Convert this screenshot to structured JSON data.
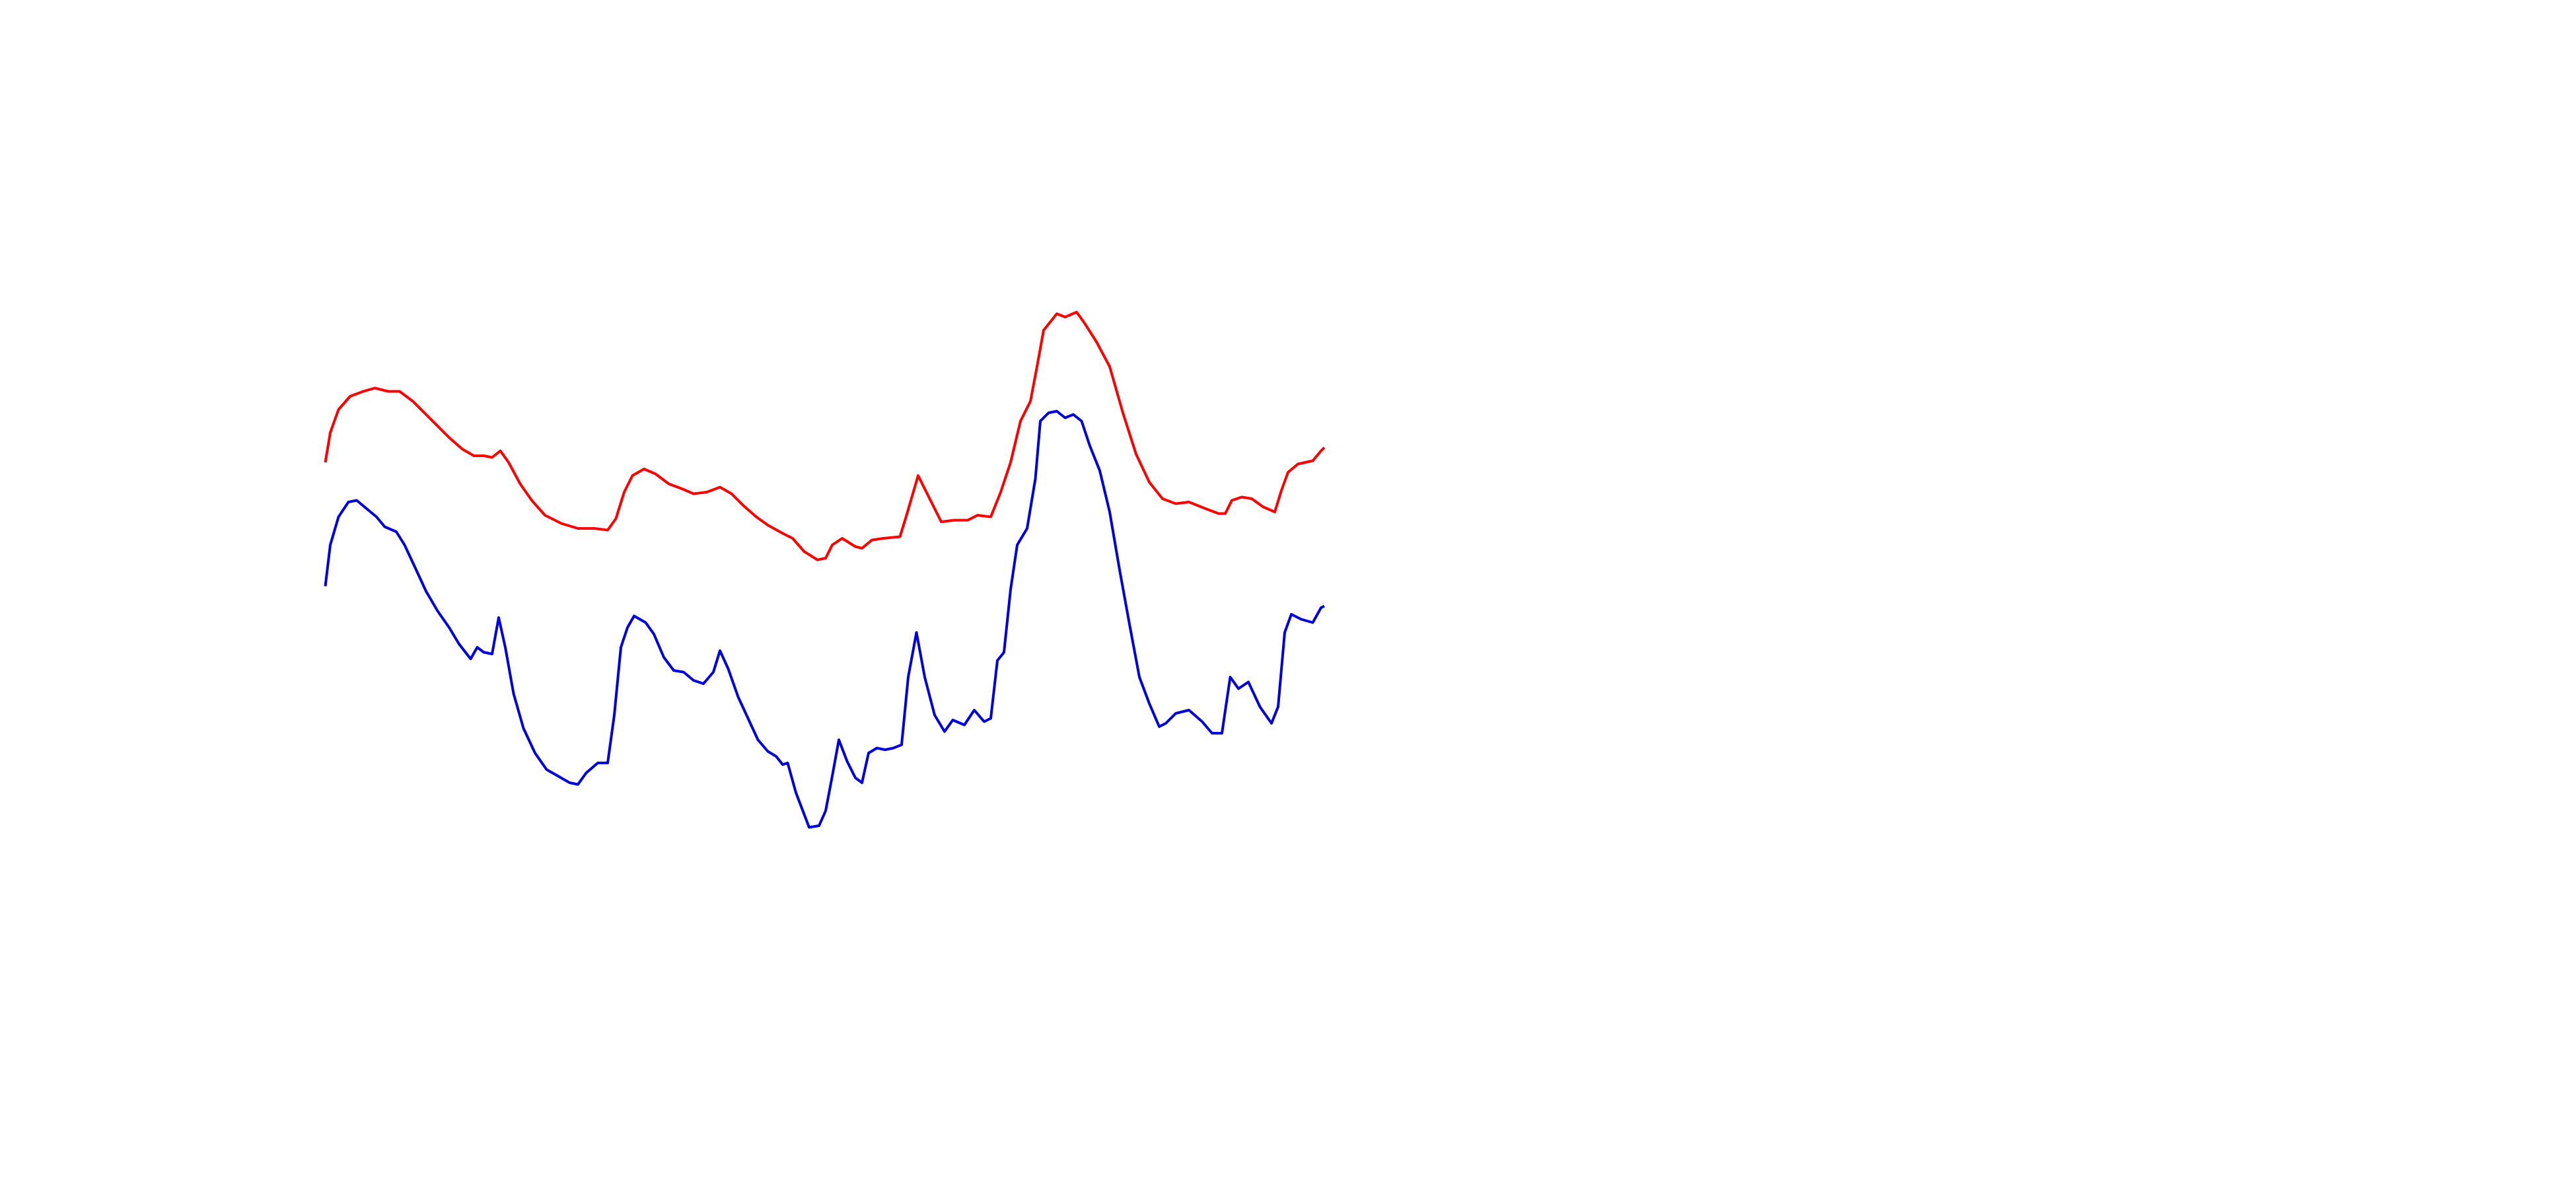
{
  "chart_data": {
    "type": "line",
    "xlim": [
      0,
      1560
    ],
    "ylim": [
      720,
      0
    ],
    "series": [
      {
        "color": "#ff0000",
        "x": [
          197,
          200,
          205,
          212,
          220,
          227,
          235,
          242,
          250,
          258,
          265,
          272,
          280,
          287,
          293,
          298,
          303,
          308,
          315,
          322,
          330,
          340,
          350,
          360,
          368,
          373,
          378,
          383,
          390,
          397,
          405,
          413,
          420,
          428,
          436,
          443,
          450,
          458,
          465,
          474,
          480,
          487,
          495,
          500,
          504,
          510,
          518,
          522,
          528,
          535,
          545,
          549,
          556,
          563,
          570,
          578,
          586,
          592,
          600,
          606,
          612,
          618,
          624,
          628,
          632,
          640,
          645,
          652,
          657,
          664,
          672,
          680,
          688,
          696,
          704,
          712,
          720,
          730,
          738,
          742,
          746,
          752,
          758,
          765,
          772,
          776,
          780,
          786,
          795,
          800,
          802
        ],
        "values": [
          280,
          262,
          248,
          240,
          237,
          235,
          237,
          237,
          243,
          251,
          258,
          265,
          272,
          276,
          276,
          277,
          273,
          280,
          293,
          303,
          312,
          317,
          320,
          320,
          321,
          314,
          298,
          288,
          284,
          287,
          293,
          296,
          299,
          298,
          295,
          299,
          306,
          313,
          318,
          323,
          326,
          334,
          339,
          338,
          330,
          326,
          331,
          332,
          327,
          326,
          325,
          312,
          288,
          302,
          316,
          315,
          315,
          312,
          313,
          298,
          280,
          255,
          243,
          222,
          200,
          190,
          192,
          189,
          196,
          207,
          222,
          250,
          275,
          292,
          302,
          305,
          304,
          308,
          311,
          311,
          303,
          301,
          302,
          307,
          310,
          297,
          286,
          281,
          279,
          273,
          271
        ]
      },
      {
        "color": "#0000dd",
        "x": [
          197,
          200,
          205,
          211,
          216,
          222,
          228,
          233,
          240,
          245,
          252,
          258,
          265,
          272,
          278,
          285,
          289,
          293,
          298,
          302,
          306,
          311,
          317,
          324,
          331,
          338,
          345,
          350,
          355,
          362,
          368,
          372,
          376,
          380,
          384,
          391,
          396,
          402,
          408,
          414,
          420,
          426,
          432,
          436,
          441,
          447,
          453,
          459,
          465,
          470,
          474,
          477,
          482,
          490,
          496,
          500,
          504,
          508,
          513,
          518,
          522,
          526,
          531,
          536,
          541,
          546,
          550,
          555,
          560,
          566,
          572,
          577,
          584,
          590,
          596,
          600,
          604,
          608,
          612,
          616,
          622,
          627,
          630,
          635,
          640,
          645,
          650,
          655,
          660,
          666,
          672,
          678,
          684,
          690,
          696,
          702,
          706,
          712,
          720,
          728,
          734,
          740,
          745,
          750,
          756,
          763,
          770,
          774,
          778,
          782,
          788,
          795,
          800,
          802
        ],
        "values": [
          355,
          330,
          313,
          304,
          303,
          308,
          313,
          319,
          322,
          330,
          345,
          358,
          370,
          380,
          390,
          399,
          392,
          395,
          396,
          374,
          392,
          420,
          441,
          456,
          466,
          470,
          474,
          475,
          468,
          462,
          462,
          433,
          392,
          380,
          373,
          377,
          384,
          398,
          406,
          407,
          412,
          414,
          407,
          394,
          405,
          422,
          435,
          448,
          455,
          458,
          463,
          462,
          480,
          501,
          500,
          491,
          470,
          448,
          461,
          471,
          474,
          456,
          453,
          454,
          453,
          451,
          410,
          383,
          410,
          433,
          443,
          436,
          439,
          430,
          437,
          435,
          400,
          395,
          357,
          330,
          320,
          290,
          255,
          250,
          249,
          253,
          251,
          255,
          270,
          285,
          310,
          345,
          378,
          410,
          426,
          440,
          438,
          432,
          430,
          437,
          444,
          444,
          410,
          417,
          413,
          428,
          438,
          428,
          383,
          372,
          375,
          377,
          368,
          367
        ]
      }
    ]
  }
}
